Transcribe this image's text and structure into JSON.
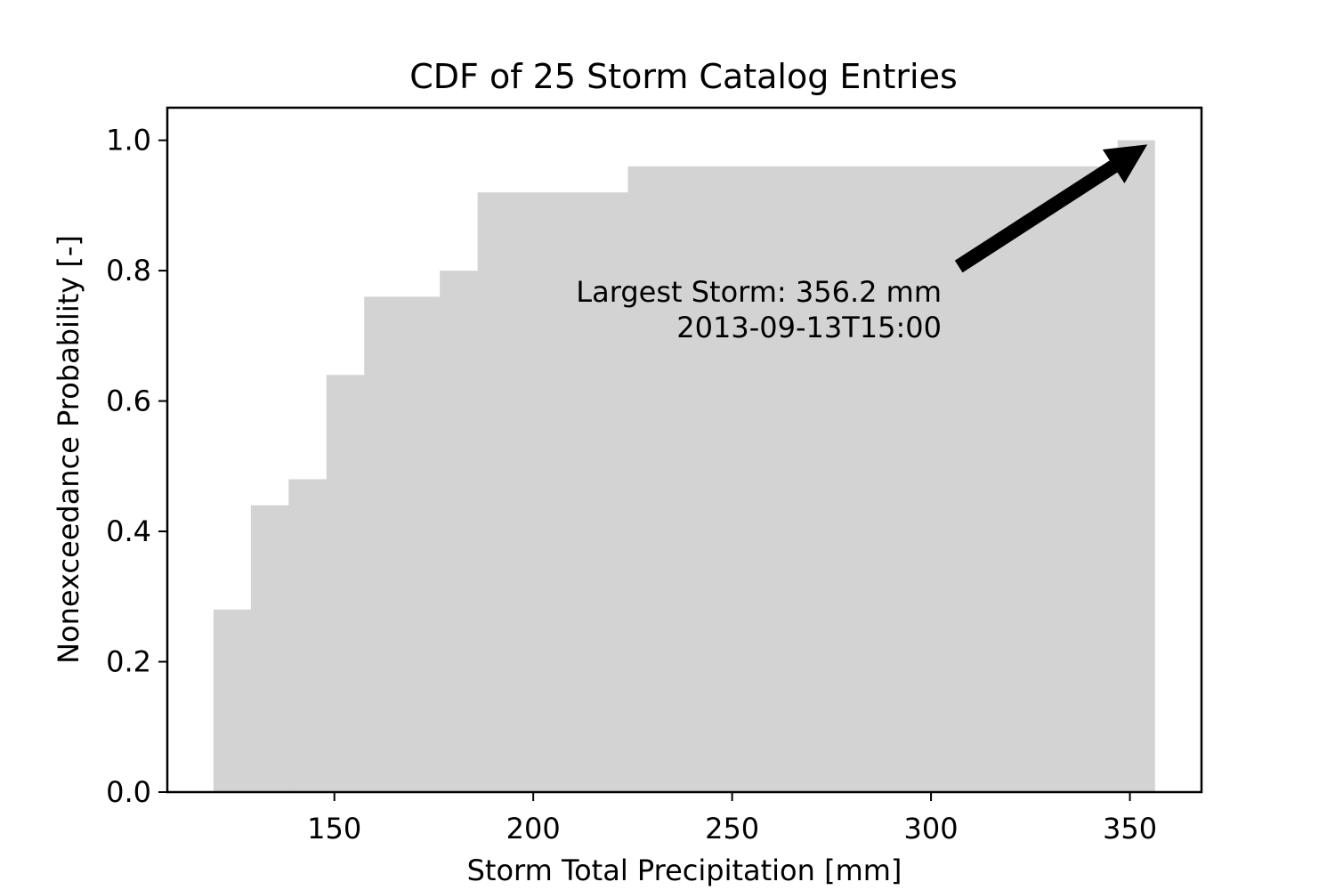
{
  "chart_data": {
    "type": "area",
    "subtype": "step-cdf",
    "title": "CDF of 25 Storm Catalog Entries",
    "xlabel": "Storm Total Precipitation [mm]",
    "ylabel": "Nonexceedance Probability [-]",
    "xlim": [
      108,
      368
    ],
    "ylim": [
      0,
      1.05
    ],
    "x_ticks": [
      150,
      200,
      250,
      300,
      350
    ],
    "x_tick_labels": [
      "150",
      "200",
      "250",
      "300",
      "350"
    ],
    "y_ticks": [
      0.0,
      0.2,
      0.4,
      0.6,
      0.8,
      1.0
    ],
    "y_tick_labels": [
      "0.0",
      "0.2",
      "0.4",
      "0.6",
      "0.8",
      "1.0"
    ],
    "fill_color": "#d3d3d3",
    "grid": false,
    "legend": "none",
    "steps": [
      {
        "x_start": 119.6,
        "x_end": 129.0,
        "y": 0.28
      },
      {
        "x_start": 129.0,
        "x_end": 138.5,
        "y": 0.44
      },
      {
        "x_start": 138.5,
        "x_end": 148.0,
        "y": 0.48
      },
      {
        "x_start": 148.0,
        "x_end": 157.5,
        "y": 0.64
      },
      {
        "x_start": 157.5,
        "x_end": 176.5,
        "y": 0.76
      },
      {
        "x_start": 176.5,
        "x_end": 186.0,
        "y": 0.8
      },
      {
        "x_start": 186.0,
        "x_end": 223.8,
        "y": 0.92
      },
      {
        "x_start": 223.8,
        "x_end": 346.9,
        "y": 0.96
      },
      {
        "x_start": 346.9,
        "x_end": 356.2,
        "y": 1.0
      }
    ],
    "annotation": {
      "line1": "Largest Storm: 356.2 mm",
      "line2": "2013-09-13T15:00",
      "arrow_target": {
        "x": 356.2,
        "y": 1.0
      },
      "arrow_color": "#000000"
    }
  }
}
